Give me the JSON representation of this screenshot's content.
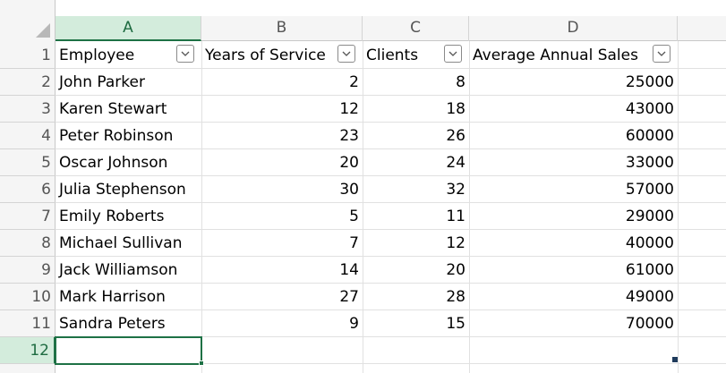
{
  "columns": [
    "A",
    "B",
    "C",
    "D"
  ],
  "row_numbers": [
    1,
    2,
    3,
    4,
    5,
    6,
    7,
    8,
    9,
    10,
    11,
    12
  ],
  "table": {
    "header": [
      "Employee",
      "Years of Service",
      "Clients",
      "Average Annual Sales"
    ],
    "rows": [
      [
        "John Parker",
        2,
        8,
        25000
      ],
      [
        "Karen Stewart",
        12,
        18,
        43000
      ],
      [
        "Peter Robinson",
        23,
        26,
        60000
      ],
      [
        "Oscar Johnson",
        20,
        24,
        33000
      ],
      [
        "Julia Stephenson",
        30,
        32,
        57000
      ],
      [
        "Emily Roberts",
        5,
        11,
        29000
      ],
      [
        "Michael Sullivan",
        7,
        12,
        40000
      ],
      [
        "Jack Williamson",
        14,
        20,
        61000
      ],
      [
        "Mark Harrison",
        27,
        28,
        49000
      ],
      [
        "Sandra Peters",
        9,
        15,
        70000
      ]
    ]
  }
}
